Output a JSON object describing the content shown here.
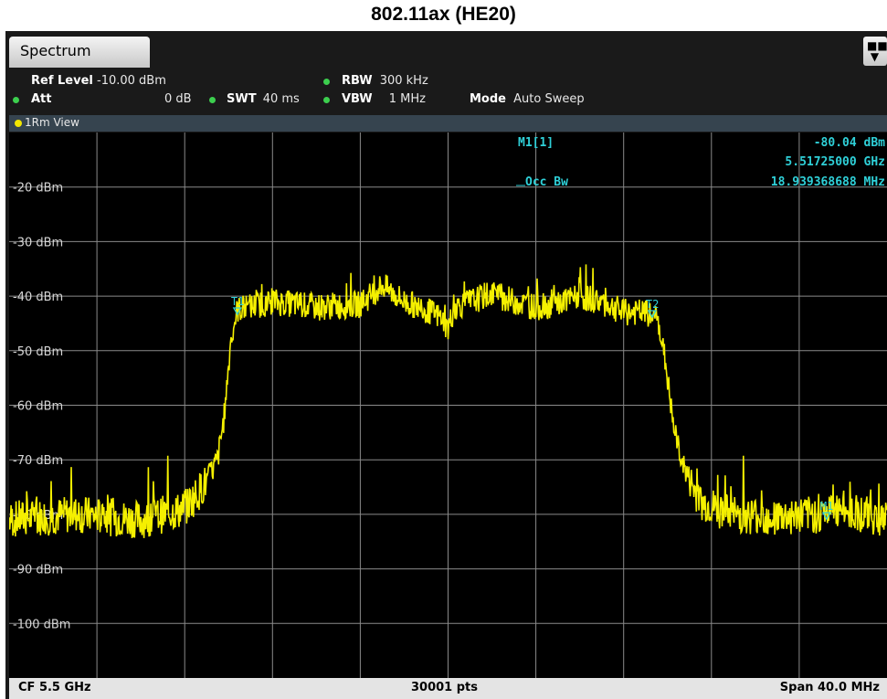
{
  "figure_title": "802.11ax (HE20)",
  "tab": {
    "label": "Spectrum"
  },
  "settings": {
    "ref_level_label": "Ref Level",
    "ref_level_value": "-10.00 dBm",
    "att_label": "Att",
    "att_value": "0 dB",
    "swt_label": "SWT",
    "swt_value": "40 ms",
    "rbw_label": "RBW",
    "rbw_value": "300 kHz",
    "vbw_label": "VBW",
    "vbw_value": "1 MHz",
    "mode_label": "Mode",
    "mode_value": "Auto Sweep"
  },
  "view": {
    "label": "1Rm View"
  },
  "markers": {
    "m1_label": "M1[1]",
    "m1_level": "-80.04 dBm",
    "m1_freq": "5.51725000 GHz",
    "occbw_label": "Occ Bw",
    "occbw_value": "18.939368688 MHz",
    "t1": "T1",
    "t2": "T2",
    "m1_tag": "M1"
  },
  "footer": {
    "cf": "CF 5.5 GHz",
    "pts": "30001 pts",
    "span": "Span 40.0 MHz"
  },
  "colors": {
    "trace": "#f5f000",
    "grid": "#8a8a8a",
    "marker": "#2fd0d8"
  },
  "chart_data": {
    "type": "line",
    "title": "802.11ax (HE20)",
    "x_unit": "MHz offset from CF 5.5 GHz",
    "xlim": [
      -20,
      20
    ],
    "ylim": [
      -110,
      -10
    ],
    "y_unit": "dBm",
    "y_tick_labels": [
      "-20 dBm",
      "-30 dBm",
      "-40 dBm",
      "-50 dBm",
      "-60 dBm",
      "-70 dBm",
      "-80 dBm",
      "-90 dBm",
      "-100 dBm"
    ],
    "y_ticks": [
      -20,
      -30,
      -40,
      -50,
      -60,
      -70,
      -80,
      -90,
      -100
    ],
    "x_divisions": 10,
    "grid": true,
    "series": [
      {
        "x": [
          -20,
          -17,
          -14,
          -12,
          -11,
          -10.5,
          -10.2,
          -9.9,
          -9.6,
          -8,
          -6,
          -4,
          -3,
          -2,
          -1,
          -0.3,
          0,
          0.3,
          1,
          2,
          3,
          4,
          5,
          6,
          7,
          8,
          9,
          9.6,
          9.9,
          10.3,
          10.8,
          11.5,
          13,
          15,
          17,
          18,
          20
        ],
        "y": [
          -81,
          -80,
          -81,
          -79,
          -74,
          -70,
          -62,
          -48,
          -42.5,
          -41,
          -42,
          -41.5,
          -38,
          -41,
          -42.5,
          -44,
          -46,
          -42,
          -41,
          -39.5,
          -41,
          -42,
          -41.5,
          -40,
          -41,
          -43,
          -43,
          -45,
          -52,
          -65,
          -72,
          -78,
          -80,
          -80.5,
          -80,
          -79,
          -81
        ]
      }
    ],
    "markers": [
      {
        "name": "T1",
        "x": -9.6,
        "y": -42.5
      },
      {
        "name": "T2",
        "x": 9.3,
        "y": -43
      },
      {
        "name": "M1",
        "x": 17.25,
        "y": -80.04
      }
    ]
  }
}
